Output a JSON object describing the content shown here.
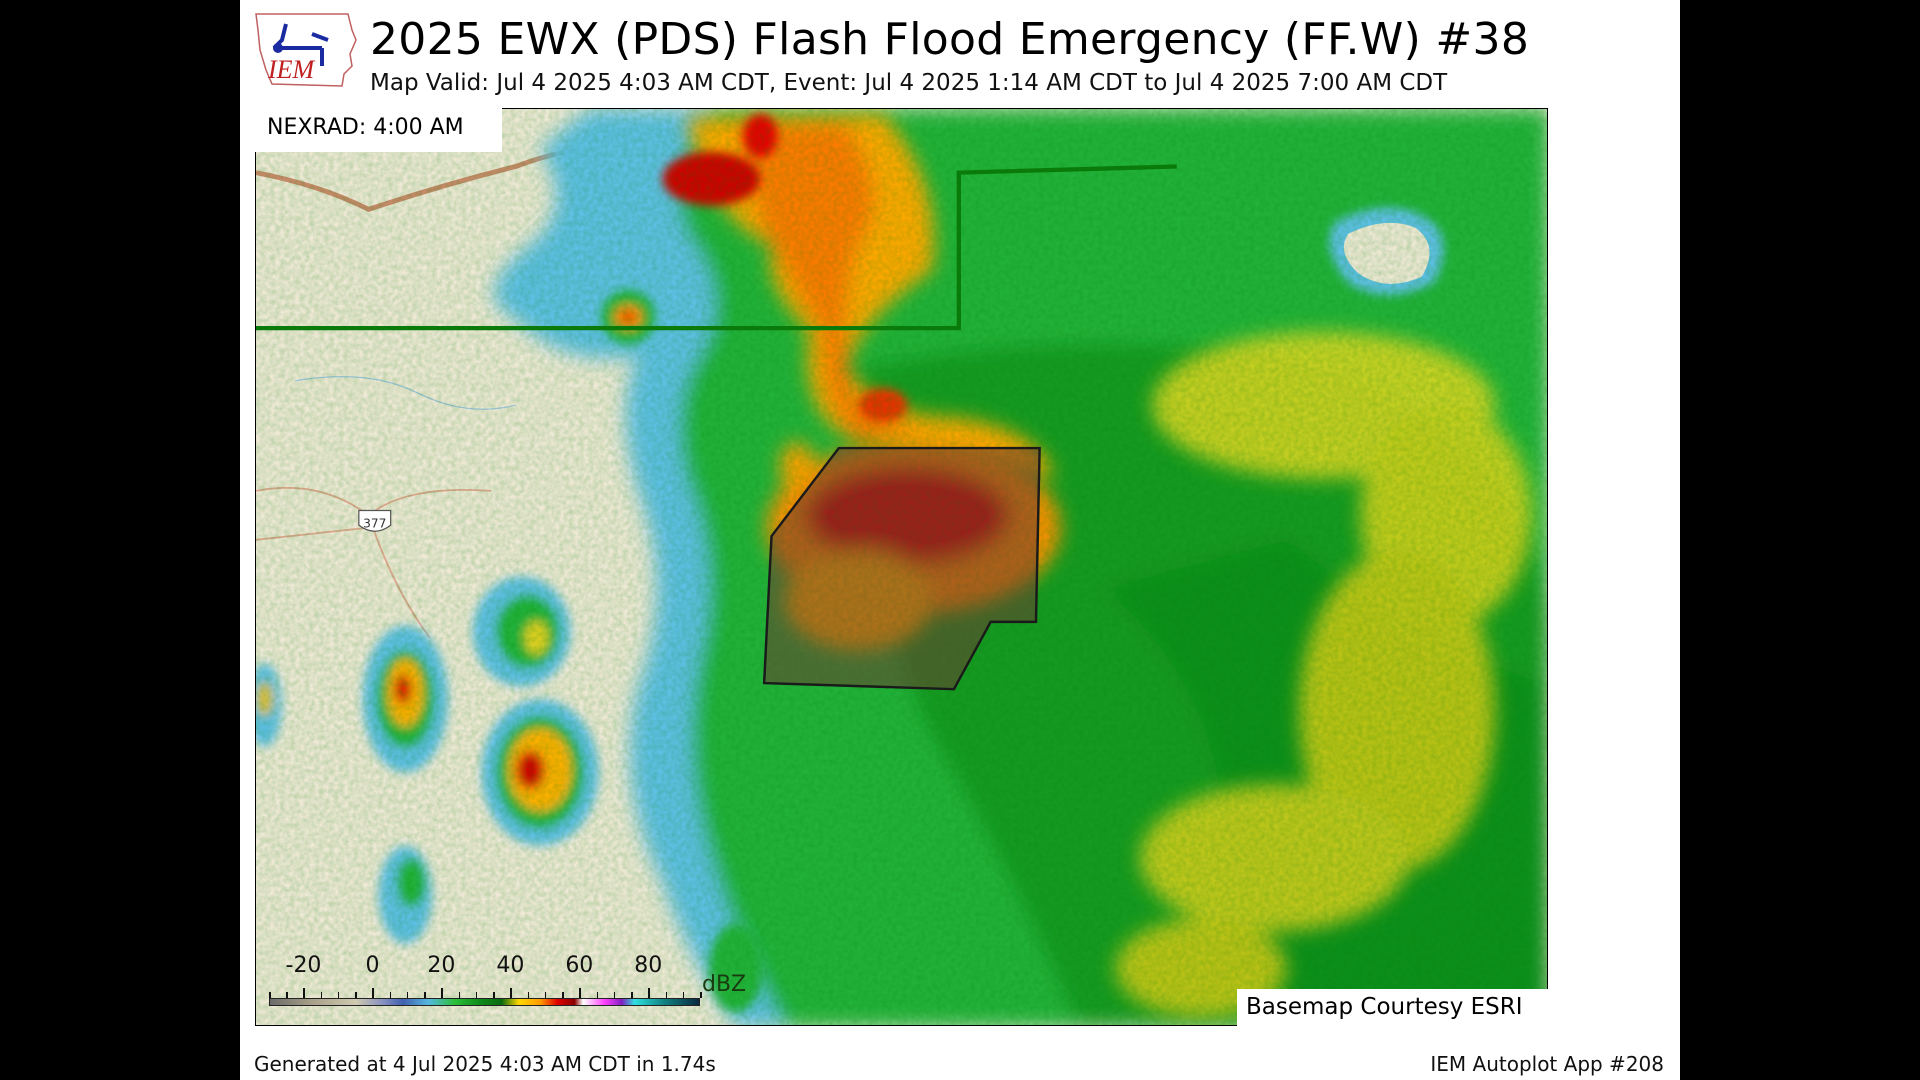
{
  "header": {
    "logo_text": "IEM",
    "title": "2025 EWX  (PDS)  Flash Flood Emergency (FF.W) #38",
    "subtitle": "Map Valid: Jul 4 2025 4:03 AM CDT, Event: Jul 4 2025 1:14 AM CDT to Jul 4 2025 7:00 AM CDT"
  },
  "map": {
    "radar_label": "NEXRAD: 4:00 AM",
    "basemap_credit": "Basemap Courtesy ESRI",
    "highway_shield": "377",
    "warning_color": "#8b2a10",
    "boundary_color": "#0a7a0a"
  },
  "colorbar": {
    "ticks": [
      "-20",
      "0",
      "20",
      "40",
      "60",
      "80"
    ],
    "unit": "dBZ"
  },
  "footer": {
    "generated": "Generated at 4 Jul 2025 4:03 AM CDT in 1.74s",
    "app": "IEM Autoplot App #208"
  }
}
